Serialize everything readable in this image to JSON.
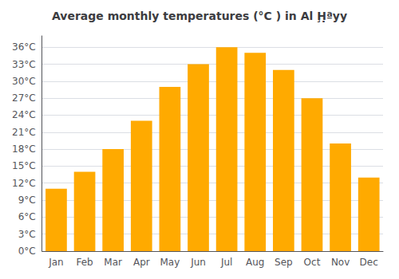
{
  "chart_data": {
    "type": "bar",
    "title": "Average monthly temperatures (°C ) in Al Ḩ̣ªyy",
    "categories": [
      "Jan",
      "Feb",
      "Mar",
      "Apr",
      "May",
      "Jun",
      "Jul",
      "Aug",
      "Sep",
      "Oct",
      "Nov",
      "Dec"
    ],
    "values": [
      11,
      14,
      18,
      23,
      29,
      33,
      36,
      35,
      32,
      27,
      19,
      13
    ],
    "color": "#FFAA00",
    "ylim": [
      0,
      38
    ],
    "yticks": [
      {
        "value": 0,
        "label": "0°C"
      },
      {
        "value": 3,
        "label": "3°C"
      },
      {
        "value": 6,
        "label": "6°C"
      },
      {
        "value": 9,
        "label": "9°C"
      },
      {
        "value": 12,
        "label": "12°C"
      },
      {
        "value": 15,
        "label": "15°C"
      },
      {
        "value": 18,
        "label": "18°C"
      },
      {
        "value": 21,
        "label": "21°C"
      },
      {
        "value": 24,
        "label": "24°C"
      },
      {
        "value": 27,
        "label": "27°C"
      },
      {
        "value": 30,
        "label": "30°C"
      },
      {
        "value": 33,
        "label": "33°C"
      },
      {
        "value": 36,
        "label": "36°C"
      }
    ],
    "grid": true
  }
}
